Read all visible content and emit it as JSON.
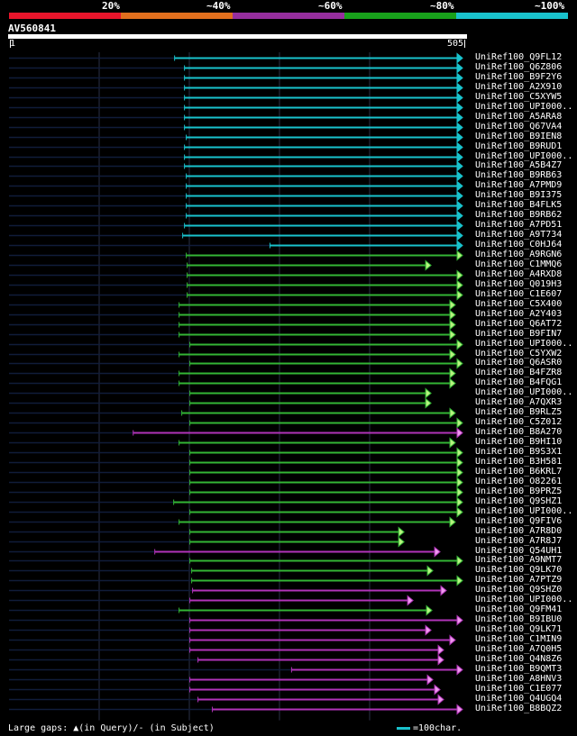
{
  "legend": {
    "segments": [
      {
        "label": "20%",
        "color": "#e8152b"
      },
      {
        "label": "~40%",
        "color": "#e26f1d"
      },
      {
        "label": "~60%",
        "color": "#962e9e"
      },
      {
        "label": "~80%",
        "color": "#18a11b"
      },
      {
        "label": "~100%",
        "color": "#19c2cc"
      }
    ]
  },
  "query": {
    "id": "AV560841",
    "start": "1",
    "end": "505",
    "length": 505
  },
  "colors": {
    "cyan": "#19c2cc",
    "green": "#33b535",
    "magenta": "#b133b8",
    "pink": "#ee99ee",
    "lime": "#b7f47f",
    "grid": "#2a2f46",
    "tail": "#101c3a"
  },
  "hits": [
    {
      "name": "UniRef100_Q9FL12",
      "start": 185,
      "end": 505,
      "color": "cyan"
    },
    {
      "name": "UniRef100_Q6Z806",
      "start": 196,
      "end": 505,
      "color": "cyan"
    },
    {
      "name": "UniRef100_B9F2Y6",
      "start": 196,
      "end": 505,
      "color": "cyan"
    },
    {
      "name": "UniRef100_A2X910",
      "start": 196,
      "end": 505,
      "color": "cyan"
    },
    {
      "name": "UniRef100_C5XYW5",
      "start": 196,
      "end": 505,
      "color": "cyan"
    },
    {
      "name": "UniRef100_UPI000..",
      "start": 196,
      "end": 505,
      "color": "cyan"
    },
    {
      "name": "UniRef100_A5ARA8",
      "start": 196,
      "end": 505,
      "color": "cyan"
    },
    {
      "name": "UniRef100_Q67VA4",
      "start": 196,
      "end": 505,
      "color": "cyan"
    },
    {
      "name": "UniRef100_B9IEN8",
      "start": 198,
      "end": 505,
      "color": "cyan"
    },
    {
      "name": "UniRef100_B9RUD1",
      "start": 196,
      "end": 505,
      "color": "cyan"
    },
    {
      "name": "UniRef100_UPI000..",
      "start": 196,
      "end": 505,
      "color": "cyan"
    },
    {
      "name": "UniRef100_A5B4Z7",
      "start": 196,
      "end": 505,
      "color": "cyan"
    },
    {
      "name": "UniRef100_B9RB63",
      "start": 198,
      "end": 505,
      "color": "cyan"
    },
    {
      "name": "UniRef100_A7PMD9",
      "start": 198,
      "end": 505,
      "color": "cyan"
    },
    {
      "name": "UniRef100_B9I375",
      "start": 198,
      "end": 505,
      "color": "cyan"
    },
    {
      "name": "UniRef100_B4FLK5",
      "start": 198,
      "end": 505,
      "color": "cyan"
    },
    {
      "name": "UniRef100_B9RB62",
      "start": 198,
      "end": 505,
      "color": "cyan"
    },
    {
      "name": "UniRef100_A7PD51",
      "start": 196,
      "end": 505,
      "color": "cyan"
    },
    {
      "name": "UniRef100_A9T734",
      "start": 194,
      "end": 505,
      "color": "cyan"
    },
    {
      "name": "UniRef100_C0HJ64",
      "start": 291,
      "end": 505,
      "color": "cyan"
    },
    {
      "name": "UniRef100_A9RGN6",
      "start": 198,
      "end": 505,
      "color": "green"
    },
    {
      "name": "UniRef100_C1MMQ6",
      "start": 199,
      "end": 470,
      "color": "green"
    },
    {
      "name": "UniRef100_A4RXD8",
      "start": 199,
      "end": 505,
      "color": "green"
    },
    {
      "name": "UniRef100_Q019H3",
      "start": 199,
      "end": 505,
      "color": "green"
    },
    {
      "name": "UniRef100_C1E607",
      "start": 199,
      "end": 505,
      "color": "green"
    },
    {
      "name": "UniRef100_C5X400",
      "start": 190,
      "end": 497,
      "color": "green"
    },
    {
      "name": "UniRef100_A2Y403",
      "start": 190,
      "end": 497,
      "color": "green"
    },
    {
      "name": "UniRef100_Q6AT72",
      "start": 190,
      "end": 497,
      "color": "green"
    },
    {
      "name": "UniRef100_B9FIN7",
      "start": 190,
      "end": 497,
      "color": "green"
    },
    {
      "name": "UniRef100_UPI000..",
      "start": 202,
      "end": 505,
      "color": "green"
    },
    {
      "name": "UniRef100_C5YXW2",
      "start": 190,
      "end": 497,
      "color": "green"
    },
    {
      "name": "UniRef100_Q6ASR0",
      "start": 202,
      "end": 505,
      "color": "green"
    },
    {
      "name": "UniRef100_B4FZR8",
      "start": 190,
      "end": 497,
      "color": "green"
    },
    {
      "name": "UniRef100_B4FQG1",
      "start": 190,
      "end": 497,
      "color": "green"
    },
    {
      "name": "UniRef100_UPI000..",
      "start": 202,
      "end": 470,
      "color": "green"
    },
    {
      "name": "UniRef100_A7QXR3",
      "start": 202,
      "end": 470,
      "color": "green"
    },
    {
      "name": "UniRef100_B9RLZ5",
      "start": 193,
      "end": 497,
      "color": "green"
    },
    {
      "name": "UniRef100_C5Z012",
      "start": 202,
      "end": 505,
      "color": "green"
    },
    {
      "name": "UniRef100_B8A270",
      "start": 139,
      "end": 505,
      "color": "magenta"
    },
    {
      "name": "UniRef100_B9HI10",
      "start": 190,
      "end": 497,
      "color": "green"
    },
    {
      "name": "UniRef100_B9S3X1",
      "start": 202,
      "end": 505,
      "color": "green"
    },
    {
      "name": "UniRef100_B3H581",
      "start": 202,
      "end": 505,
      "color": "green"
    },
    {
      "name": "UniRef100_B6KRL7",
      "start": 202,
      "end": 505,
      "color": "green"
    },
    {
      "name": "UniRef100_O82261",
      "start": 202,
      "end": 505,
      "color": "green"
    },
    {
      "name": "UniRef100_B9PRZ5",
      "start": 202,
      "end": 505,
      "color": "green"
    },
    {
      "name": "UniRef100_Q9SHZ1",
      "start": 184,
      "end": 505,
      "color": "green"
    },
    {
      "name": "UniRef100_UPI000..",
      "start": 202,
      "end": 505,
      "color": "green"
    },
    {
      "name": "UniRef100_Q9FIV6",
      "start": 190,
      "end": 497,
      "color": "green"
    },
    {
      "name": "UniRef100_A7R8D0",
      "start": 202,
      "end": 440,
      "color": "green"
    },
    {
      "name": "UniRef100_A7R8J7",
      "start": 202,
      "end": 440,
      "color": "green"
    },
    {
      "name": "UniRef100_Q54UH1",
      "start": 163,
      "end": 480,
      "color": "magenta"
    },
    {
      "name": "UniRef100_A9NMT7",
      "start": 202,
      "end": 505,
      "color": "green"
    },
    {
      "name": "UniRef100_Q9LK70",
      "start": 204,
      "end": 472,
      "color": "green"
    },
    {
      "name": "UniRef100_A7PTZ9",
      "start": 204,
      "end": 505,
      "color": "green"
    },
    {
      "name": "UniRef100_Q9SHZ0",
      "start": 205,
      "end": 487,
      "color": "magenta"
    },
    {
      "name": "UniRef100_UPI000..",
      "start": 202,
      "end": 450,
      "color": "magenta"
    },
    {
      "name": "UniRef100_Q9FM41",
      "start": 190,
      "end": 471,
      "color": "green"
    },
    {
      "name": "UniRef100_B9IBU0",
      "start": 202,
      "end": 505,
      "color": "magenta"
    },
    {
      "name": "UniRef100_Q9LK71",
      "start": 202,
      "end": 470,
      "color": "magenta"
    },
    {
      "name": "UniRef100_C1MIN9",
      "start": 202,
      "end": 497,
      "color": "magenta"
    },
    {
      "name": "UniRef100_A7Q0H5",
      "start": 202,
      "end": 484,
      "color": "magenta"
    },
    {
      "name": "UniRef100_Q4N8Z6",
      "start": 211,
      "end": 484,
      "color": "magenta"
    },
    {
      "name": "UniRef100_B9QMT3",
      "start": 315,
      "end": 505,
      "color": "magenta"
    },
    {
      "name": "UniRef100_A8HNV3",
      "start": 202,
      "end": 472,
      "color": "magenta"
    },
    {
      "name": "UniRef100_C1E077",
      "start": 202,
      "end": 480,
      "color": "magenta"
    },
    {
      "name": "UniRef100_Q4UGQ4",
      "start": 211,
      "end": 484,
      "color": "magenta"
    },
    {
      "name": "UniRef100_B8BQZ2",
      "start": 227,
      "end": 505,
      "color": "magenta"
    }
  ],
  "footer": {
    "gaps_text": "Large gaps: ▲(in Query)/- (in Subject)",
    "scale_text": "=100char."
  }
}
